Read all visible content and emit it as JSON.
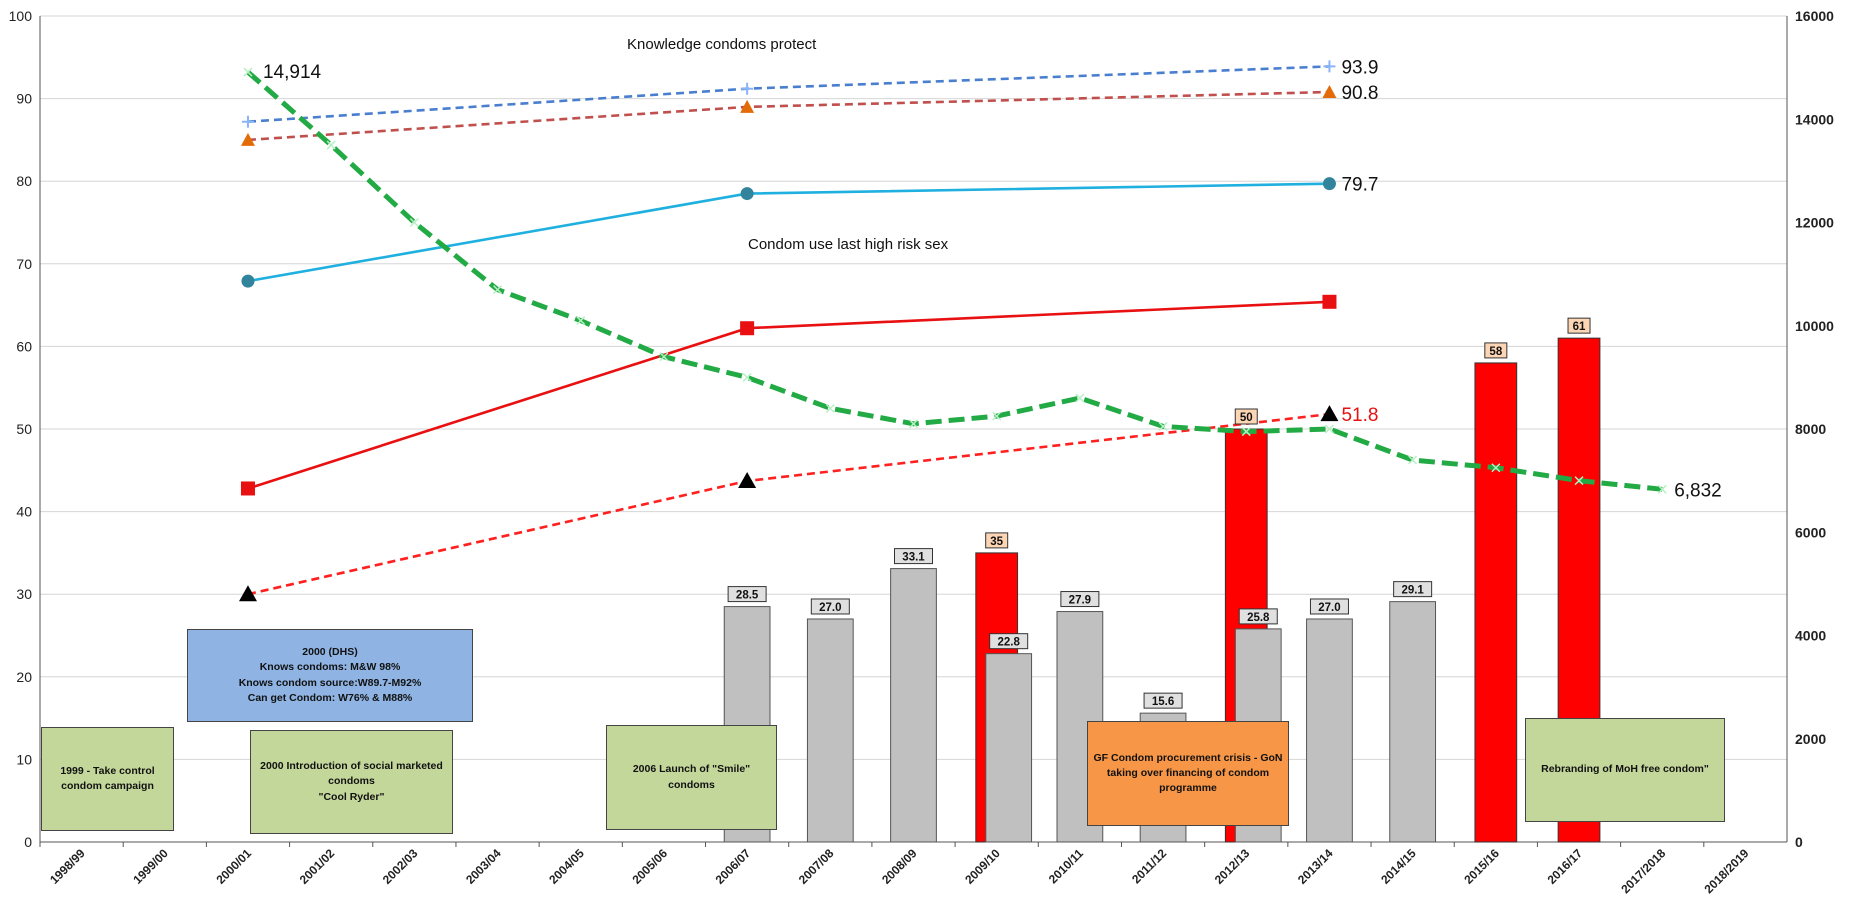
{
  "chart_data": {
    "type": "bar",
    "categories": [
      "1998/99",
      "1999/00",
      "2000/01",
      "2001/02",
      "2002/03",
      "2003/04",
      "2004/05",
      "2005/06",
      "2006/07",
      "2007/08",
      "2008/09",
      "2009/10",
      "2010/11",
      "2011/12",
      "2012/13",
      "2013/14",
      "2014/15",
      "2015/16",
      "2016/17",
      "2017/2018",
      "2018/2019"
    ],
    "ylim": [
      0,
      100
    ],
    "y_ticks": [
      "0",
      "10",
      "20",
      "30",
      "40",
      "50",
      "60",
      "70",
      "80",
      "90",
      "100"
    ],
    "y2lim": [
      0,
      16000
    ],
    "y2_ticks": [
      "0",
      "2000",
      "4000",
      "6000",
      "8000",
      "10000",
      "12000",
      "14000",
      "16000"
    ],
    "grid": true,
    "bar_series": [
      {
        "name": "gray",
        "color": "#c0c0c0",
        "points": [
          {
            "x": "2006/07",
            "y": 28.5,
            "label": "28.5"
          },
          {
            "x": "2007/08",
            "y": 27.0,
            "label": "27.0"
          },
          {
            "x": "2008/09",
            "y": 33.1,
            "label": "33.1"
          },
          {
            "x": "2009/10",
            "y": 22.8,
            "label": "22.8"
          },
          {
            "x": "2010/11",
            "y": 27.9,
            "label": "27.9"
          },
          {
            "x": "2011/12",
            "y": 15.6,
            "label": "15.6"
          },
          {
            "x": "2012/13",
            "y": 25.8,
            "label": "25.8"
          },
          {
            "x": "2013/14",
            "y": 27.0,
            "label": "27.0"
          },
          {
            "x": "2014/15",
            "y": 29.1,
            "label": "29.1"
          }
        ]
      },
      {
        "name": "red",
        "color": "#ff0000",
        "points": [
          {
            "x": "2009/10",
            "y": 35,
            "label": "35"
          },
          {
            "x": "2012/13",
            "y": 50,
            "label": "50"
          },
          {
            "x": "2015/16",
            "y": 58,
            "label": "58"
          },
          {
            "x": "2016/17",
            "y": 61,
            "label": "61"
          }
        ]
      }
    ],
    "line_series": [
      {
        "name": "blue-dashed",
        "color": "#4a7fcf",
        "dash": true,
        "marker": "plus",
        "axis": "left",
        "points": [
          {
            "x": "2000/01",
            "y": 87.2
          },
          {
            "x": "2006/07",
            "y": 91.2
          },
          {
            "x": "2013/14",
            "y": 93.9
          }
        ],
        "end_label": "93.9"
      },
      {
        "name": "brown-dashed",
        "color": "#c0504d",
        "dash": true,
        "marker": "triangle-orange",
        "axis": "left",
        "points": [
          {
            "x": "2000/01",
            "y": 85.0
          },
          {
            "x": "2006/07",
            "y": 89.0
          },
          {
            "x": "2013/14",
            "y": 90.8
          }
        ],
        "end_label": "90.8"
      },
      {
        "name": "cyan-solid",
        "color": "#1fb0e0",
        "dash": false,
        "marker": "circle",
        "axis": "left",
        "points": [
          {
            "x": "2000/01",
            "y": 67.9
          },
          {
            "x": "2006/07",
            "y": 78.5
          },
          {
            "x": "2013/14",
            "y": 79.7
          }
        ],
        "end_label": "79.7"
      },
      {
        "name": "red-solid",
        "color": "#e81010",
        "dash": false,
        "marker": "square",
        "axis": "left",
        "points": [
          {
            "x": "2000/01",
            "y": 42.8
          },
          {
            "x": "2006/07",
            "y": 62.2
          },
          {
            "x": "2013/14",
            "y": 65.4
          }
        ],
        "end_label": ""
      },
      {
        "name": "red-dashed",
        "color": "#ff2020",
        "dash": true,
        "marker": "triangle-black",
        "axis": "left",
        "points": [
          {
            "x": "2000/01",
            "y": 30.0
          },
          {
            "x": "2006/07",
            "y": 43.7
          },
          {
            "x": "2013/14",
            "y": 51.8
          }
        ],
        "end_label": "51.8"
      },
      {
        "name": "green-dashed",
        "color": "#22aa44",
        "dash": true,
        "marker": "x",
        "axis": "right",
        "points": [
          {
            "x": "2000/01",
            "y": 14914
          },
          {
            "x": "2001/02",
            "y": 13500
          },
          {
            "x": "2002/03",
            "y": 12000
          },
          {
            "x": "2003/04",
            "y": 10700
          },
          {
            "x": "2004/05",
            "y": 10100
          },
          {
            "x": "2005/06",
            "y": 9400
          },
          {
            "x": "2006/07",
            "y": 9000
          },
          {
            "x": "2007/08",
            "y": 8400
          },
          {
            "x": "2008/09",
            "y": 8100
          },
          {
            "x": "2009/10",
            "y": 8250
          },
          {
            "x": "2010/11",
            "y": 8600
          },
          {
            "x": "2011/12",
            "y": 8050
          },
          {
            "x": "2012/13",
            "y": 7950
          },
          {
            "x": "2013/14",
            "y": 8000
          },
          {
            "x": "2014/15",
            "y": 7400
          },
          {
            "x": "2015/16",
            "y": 7250
          },
          {
            "x": "2016/17",
            "y": 7000
          },
          {
            "x": "2017/2018",
            "y": 6832
          }
        ],
        "start_label": "14,914",
        "end_label": "6,832"
      }
    ],
    "annotations": {
      "knowledge": "Knowledge condoms protect",
      "condom_use": "Condom use last high risk sex"
    },
    "textboxes": [
      {
        "id": "dhs",
        "color": "#8fb4e3",
        "text": "2000 (DHS)\nKnows condoms: M&W 98%\nKnows condom source:W89.7-M92%\nCan get Condom: W76% & M88%"
      },
      {
        "id": "campaign",
        "color": "#c4d79b",
        "text": "1999 - Take control\ncondom campaign"
      },
      {
        "id": "cool-ryder",
        "color": "#c4d79b",
        "text": "2000  Introduction of social marketed\ncondoms\n\"Cool Ryder\""
      },
      {
        "id": "smile",
        "color": "#c4d79b",
        "text": "2006 Launch of \"Smile\"\ncondoms"
      },
      {
        "id": "gf-crisis",
        "color": "#f79646",
        "text": "GF Condom procurement crisis - GoN\ntaking over financing of condom\nprogramme"
      },
      {
        "id": "rebranding",
        "color": "#c4d79b",
        "text": "Rebranding of MoH free condom\""
      }
    ]
  }
}
